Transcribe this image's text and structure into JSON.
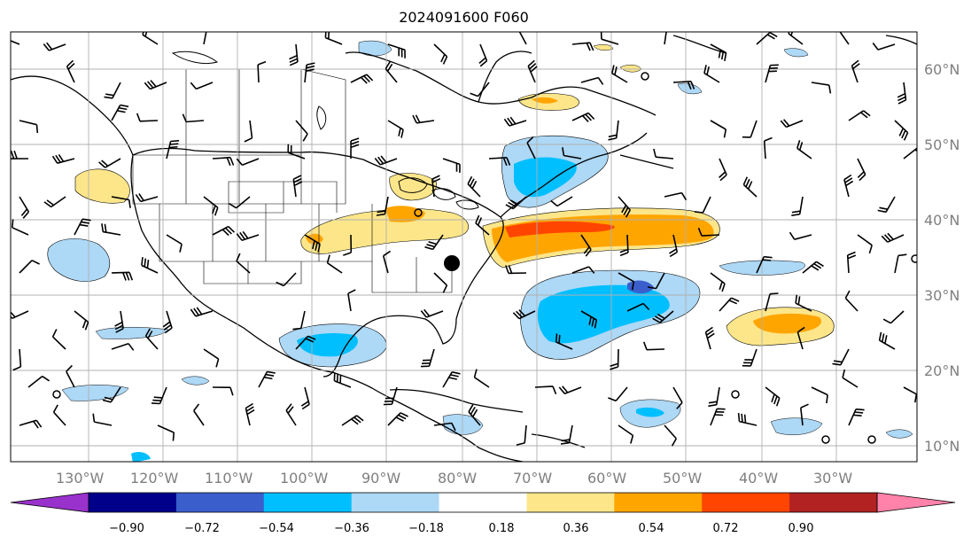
{
  "title": "2024091600 F060",
  "latitude_labels": [
    "60°N",
    "50°N",
    "40°N",
    "30°N",
    "20°N",
    "10°N"
  ],
  "longitude_labels": [
    "130°W",
    "120°W",
    "110°W",
    "100°W",
    "90°W",
    "80°W",
    "70°W",
    "60°W",
    "50°W",
    "40°W",
    "30°W"
  ],
  "colorbar": {
    "labels": [
      "−0.90",
      "−0.72",
      "−0.54",
      "−0.36",
      "−0.18",
      "0.18",
      "0.36",
      "0.54",
      "0.72",
      "0.90"
    ],
    "colors": [
      "#9932cc",
      "#00008b",
      "#3a5fcd",
      "#00bfff",
      "#add8f6",
      "#ffffff",
      "#fde68a",
      "#ffa500",
      "#ff4500",
      "#b22222",
      "#ff82ab"
    ]
  },
  "marker": {
    "lat": 34,
    "lon": -81,
    "color": "#000000"
  }
}
